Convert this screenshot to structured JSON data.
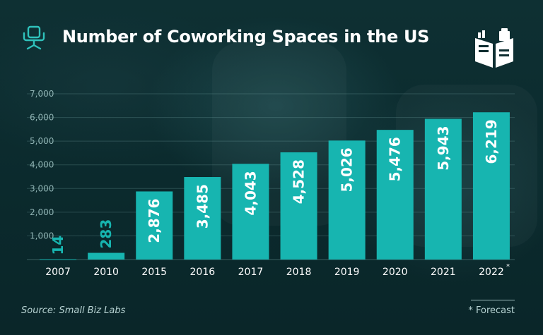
{
  "header": {
    "title": "Number of Coworking Spaces in the US",
    "title_icon": "office-chair-icon",
    "logo_icon": "open-book-logo-icon"
  },
  "footer": {
    "source": "Source: Small Biz Labs",
    "forecast_note": "* Forecast"
  },
  "colors": {
    "bar": "#17b5b0",
    "background": "#0c2c2f",
    "accent": "#2fc2bb"
  },
  "chart_data": {
    "type": "bar",
    "title": "Number of Coworking Spaces in the US",
    "categories": [
      "2007",
      "2010",
      "2015",
      "2016",
      "2017",
      "2018",
      "2019",
      "2020",
      "2021",
      "2022"
    ],
    "values": [
      14,
      283,
      2876,
      3485,
      4043,
      4528,
      5026,
      5476,
      5943,
      6219
    ],
    "value_labels": [
      "14",
      "283",
      "2,876",
      "3,485",
      "4,043",
      "4,528",
      "5,026",
      "5,476",
      "5,943",
      "6,219"
    ],
    "forecast_marker": {
      "category": "2022",
      "symbol": "*"
    },
    "y_ticks": [
      "1,000",
      "2,000",
      "3,000",
      "4,000",
      "5,000",
      "6,000",
      "7,000"
    ],
    "y_tick_values": [
      1000,
      2000,
      3000,
      4000,
      5000,
      6000,
      7000
    ],
    "ylim": [
      0,
      7000
    ],
    "grid": true,
    "xlabel": "",
    "ylabel": ""
  }
}
